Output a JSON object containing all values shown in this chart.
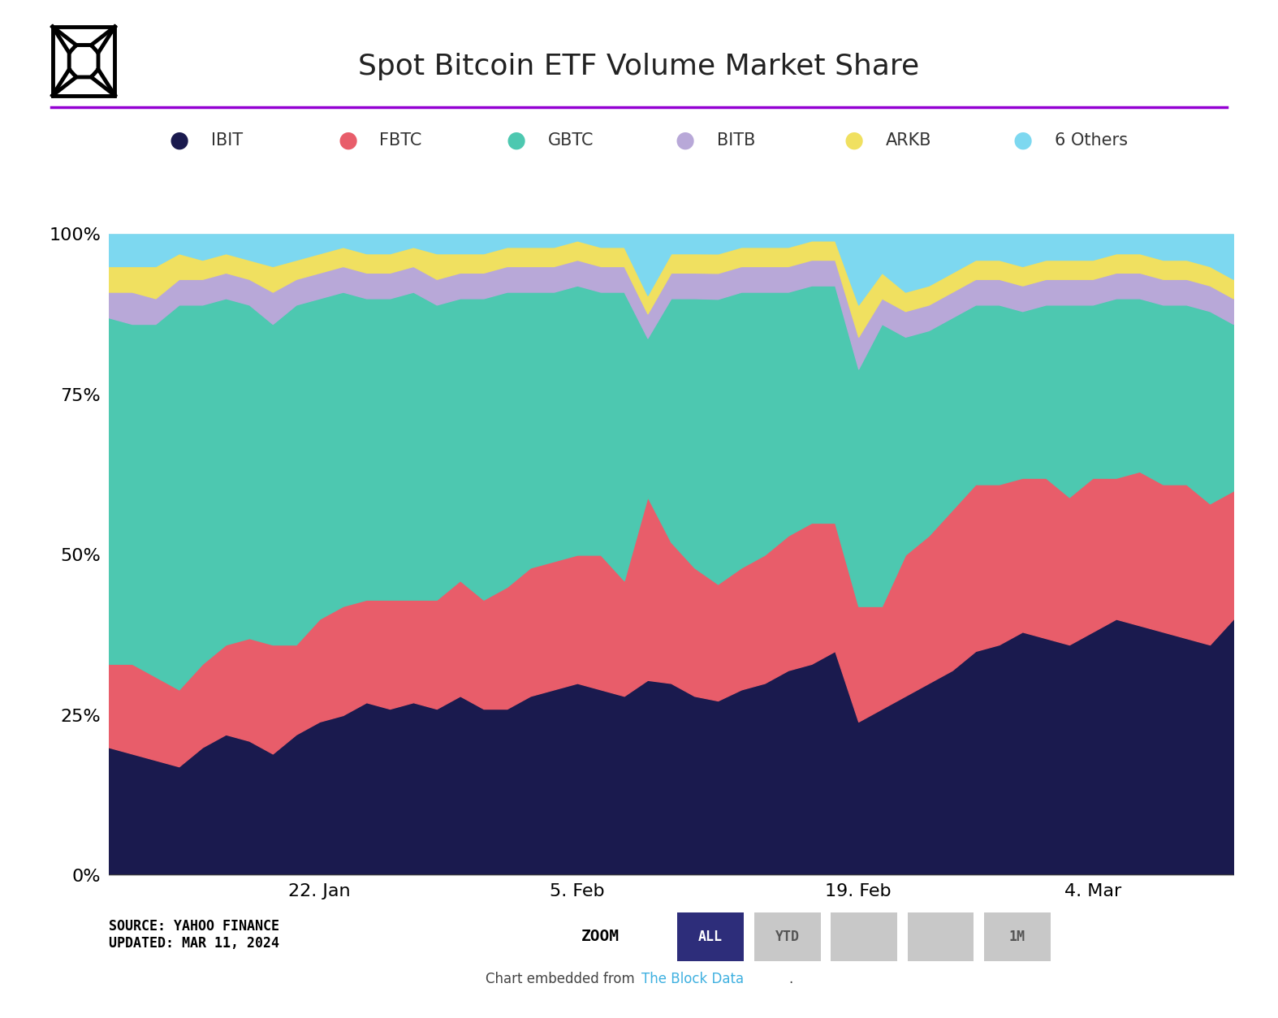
{
  "title": "Spot Bitcoin ETF Volume Market Share",
  "series_labels": [
    "IBIT",
    "FBTC",
    "GBTC",
    "BITB",
    "ARKB",
    "6 Others"
  ],
  "series_colors": [
    "#1a1a4e",
    "#e85d6a",
    "#4dc8b0",
    "#b8a8d8",
    "#f0e060",
    "#7dd8f0"
  ],
  "source_text": "SOURCE: YAHOO FINANCE\nUPDATED: MAR 11, 2024",
  "purple_line_color": "#9400d3",
  "zoom_button_active_color": "#2d2d7a",
  "zoom_button_inactive_color": "#c8c8c8",
  "x_labels": [
    "22. Jan",
    "5. Feb",
    "19. Feb",
    "4. Mar"
  ],
  "x_tick_positions": [
    9,
    20,
    32,
    42
  ],
  "dates": [
    0,
    1,
    2,
    3,
    4,
    5,
    6,
    7,
    8,
    9,
    10,
    11,
    12,
    13,
    14,
    15,
    16,
    17,
    18,
    19,
    20,
    21,
    22,
    23,
    24,
    25,
    26,
    27,
    28,
    29,
    30,
    31,
    32,
    33,
    34,
    35,
    36,
    37,
    38,
    39,
    40,
    41,
    42,
    43,
    44,
    45,
    46,
    47,
    48
  ],
  "IBIT": [
    20,
    19,
    18,
    17,
    20,
    22,
    21,
    19,
    22,
    24,
    25,
    27,
    26,
    27,
    26,
    28,
    26,
    26,
    28,
    29,
    30,
    29,
    28,
    32,
    30,
    28,
    27,
    29,
    30,
    32,
    33,
    35,
    24,
    26,
    28,
    30,
    32,
    35,
    36,
    38,
    37,
    36,
    38,
    40,
    39,
    38,
    37,
    36,
    40
  ],
  "FBTC": [
    13,
    14,
    13,
    12,
    13,
    14,
    16,
    17,
    14,
    16,
    17,
    16,
    17,
    16,
    17,
    18,
    17,
    19,
    20,
    20,
    20,
    21,
    18,
    30,
    22,
    20,
    18,
    19,
    20,
    21,
    22,
    20,
    18,
    16,
    22,
    23,
    25,
    26,
    25,
    24,
    25,
    23,
    24,
    22,
    24,
    23,
    24,
    22,
    20
  ],
  "GBTC": [
    54,
    53,
    55,
    60,
    56,
    54,
    52,
    50,
    53,
    50,
    49,
    47,
    47,
    48,
    46,
    44,
    47,
    46,
    43,
    42,
    42,
    41,
    45,
    26,
    38,
    42,
    44,
    43,
    41,
    38,
    37,
    37,
    37,
    44,
    34,
    32,
    30,
    28,
    28,
    26,
    27,
    30,
    27,
    28,
    27,
    28,
    28,
    30,
    26
  ],
  "BITB": [
    4,
    5,
    4,
    4,
    4,
    4,
    4,
    5,
    4,
    4,
    4,
    4,
    4,
    4,
    4,
    4,
    4,
    4,
    4,
    4,
    4,
    4,
    4,
    4,
    4,
    4,
    4,
    4,
    4,
    4,
    4,
    4,
    5,
    4,
    4,
    4,
    4,
    4,
    4,
    4,
    4,
    4,
    4,
    4,
    4,
    4,
    4,
    4,
    4
  ],
  "ARKB": [
    4,
    4,
    5,
    4,
    3,
    3,
    3,
    4,
    3,
    3,
    3,
    3,
    3,
    3,
    4,
    3,
    3,
    3,
    3,
    3,
    3,
    3,
    3,
    3,
    3,
    3,
    3,
    3,
    3,
    3,
    3,
    3,
    5,
    4,
    3,
    3,
    3,
    3,
    3,
    3,
    3,
    3,
    3,
    3,
    3,
    3,
    3,
    3,
    3
  ],
  "others": [
    5,
    5,
    5,
    3,
    4,
    3,
    4,
    5,
    4,
    3,
    2,
    3,
    3,
    2,
    3,
    3,
    3,
    2,
    2,
    2,
    1,
    2,
    2,
    10,
    3,
    3,
    3,
    2,
    2,
    2,
    1,
    1,
    11,
    6,
    9,
    8,
    6,
    4,
    4,
    5,
    4,
    4,
    4,
    3,
    3,
    4,
    4,
    5,
    7
  ]
}
